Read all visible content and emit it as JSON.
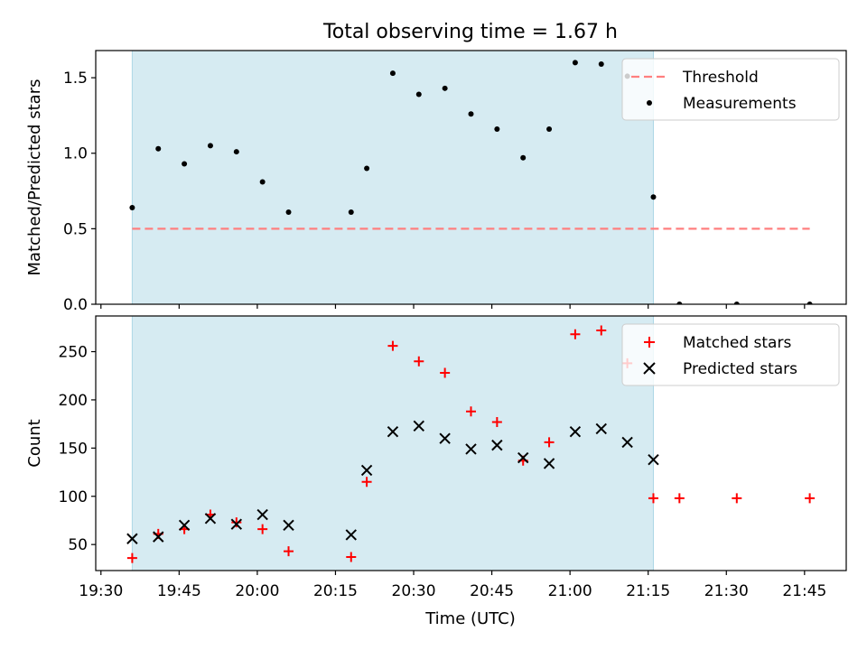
{
  "title": "Total observing time = 1.67 h",
  "xlabel": "Time (UTC)",
  "chart_data": [
    {
      "type": "scatter",
      "ylabel": "Matched/Predicted stars",
      "xlim": [
        "19:29",
        "21:53"
      ],
      "ylim": [
        0,
        1.68
      ],
      "yticks": [
        "0.0",
        "0.5",
        "1.0",
        "1.5"
      ],
      "ytick_values": [
        0,
        0.5,
        1.0,
        1.5
      ],
      "shaded_span": [
        "19:36",
        "21:16"
      ],
      "legend_position": "top-right",
      "series": [
        {
          "name": "Threshold",
          "style": "dashed-line",
          "color": "#ff7f7f",
          "x": [
            "19:36",
            "21:46"
          ],
          "y": [
            0.5,
            0.5
          ]
        },
        {
          "name": "Measurements",
          "style": "dot",
          "color": "#000000",
          "x": [
            "19:36",
            "19:41",
            "19:46",
            "19:51",
            "19:56",
            "20:01",
            "20:06",
            "20:18",
            "20:21",
            "20:26",
            "20:31",
            "20:36",
            "20:41",
            "20:46",
            "20:51",
            "20:56",
            "21:01",
            "21:06",
            "21:11",
            "21:16",
            "21:21",
            "21:32",
            "21:46"
          ],
          "y": [
            0.64,
            1.03,
            0.93,
            1.05,
            1.01,
            0.81,
            0.61,
            0.61,
            0.9,
            1.53,
            1.39,
            1.43,
            1.26,
            1.16,
            0.97,
            1.16,
            1.6,
            1.59,
            1.51,
            0.71,
            0.0,
            0.0,
            0.0
          ]
        }
      ]
    },
    {
      "type": "scatter",
      "ylabel": "Count",
      "xlim": [
        "19:29",
        "21:53"
      ],
      "ylim": [
        23,
        287
      ],
      "yticks": [
        "50",
        "100",
        "150",
        "200",
        "250"
      ],
      "ytick_values": [
        50,
        100,
        150,
        200,
        250
      ],
      "xticks": [
        "19:30",
        "19:45",
        "20:00",
        "20:15",
        "20:30",
        "20:45",
        "21:00",
        "21:15",
        "21:30",
        "21:45"
      ],
      "shaded_span": [
        "19:36",
        "21:16"
      ],
      "legend_position": "top-right",
      "series": [
        {
          "name": "Matched stars",
          "marker": "plus",
          "color": "#ff0000",
          "x": [
            "19:36",
            "19:41",
            "19:46",
            "19:51",
            "19:56",
            "20:01",
            "20:06",
            "20:18",
            "20:21",
            "20:26",
            "20:31",
            "20:36",
            "20:41",
            "20:46",
            "20:51",
            "20:56",
            "21:01",
            "21:06",
            "21:11",
            "21:16",
            "21:21",
            "21:32",
            "21:46"
          ],
          "y": [
            36,
            61,
            66,
            81,
            73,
            66,
            43,
            37,
            115,
            256,
            240,
            228,
            188,
            177,
            137,
            156,
            268,
            272,
            238,
            98,
            98,
            98,
            98
          ]
        },
        {
          "name": "Predicted stars",
          "marker": "x",
          "color": "#000000",
          "x": [
            "19:36",
            "19:41",
            "19:46",
            "19:51",
            "19:56",
            "20:01",
            "20:06",
            "20:18",
            "20:21",
            "20:26",
            "20:31",
            "20:36",
            "20:41",
            "20:46",
            "20:51",
            "20:56",
            "21:01",
            "21:06",
            "21:11",
            "21:16"
          ],
          "y": [
            56,
            58,
            70,
            77,
            71,
            81,
            70,
            60,
            127,
            167,
            173,
            160,
            149,
            153,
            140,
            134,
            167,
            170,
            156,
            138
          ]
        }
      ]
    }
  ]
}
